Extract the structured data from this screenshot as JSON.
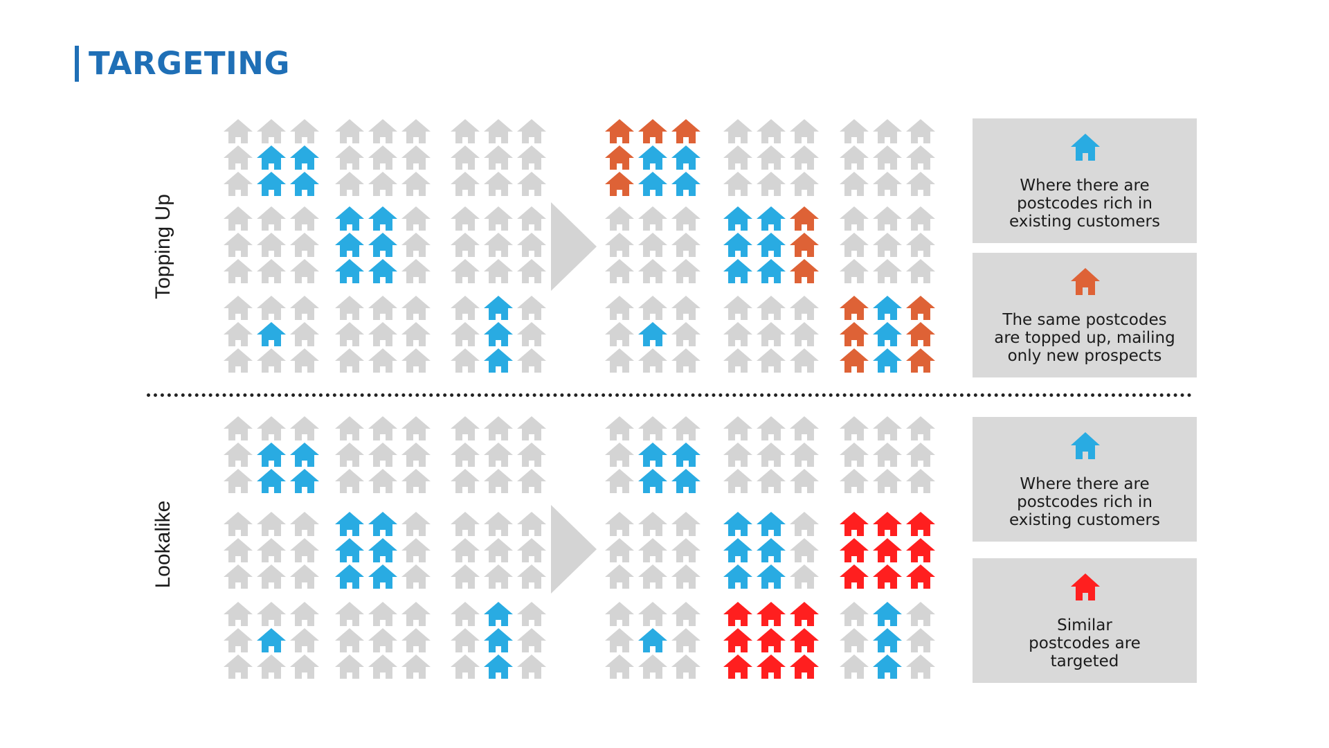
{
  "title": "TARGETING",
  "colors": {
    "title": "#1f6fb6",
    "empty_house": "#d4d4d4",
    "existing_customer": "#29abe2",
    "topped_up": "#de6236",
    "targeted": "#ff1f1f",
    "info_box_bg": "#d9d9d9"
  },
  "sections": [
    {
      "label": "Topping Up",
      "before": [
        [
          "ggg",
          "gbb",
          "gbb",
          "ggg",
          "ggg",
          "ggg",
          "ggg",
          "ggg",
          "ggg"
        ],
        [
          "ggg",
          "ggg",
          "ggg",
          "bbg",
          "bbg",
          "bbg",
          "ggg",
          "ggg",
          "ggg"
        ],
        [
          "ggg",
          "gbg",
          "ggg",
          "ggg",
          "ggg",
          "ggg",
          "gbg",
          "gbg",
          "gbg"
        ]
      ],
      "after": [
        [
          "ooo",
          "obb",
          "obb",
          "ggg",
          "ggg",
          "ggg",
          "ggg",
          "ggg",
          "ggg"
        ],
        [
          "ggg",
          "ggg",
          "ggg",
          "bbo",
          "bbo",
          "bbo",
          "ggg",
          "ggg",
          "ggg"
        ],
        [
          "ggg",
          "gbg",
          "ggg",
          "ggg",
          "ggg",
          "ggg",
          "obo",
          "obo",
          "obo"
        ]
      ],
      "legend": [
        {
          "icon": "blue-house-icon",
          "color": "existing_customer",
          "text": "Where there are\npostcodes rich in\nexisting customers"
        },
        {
          "icon": "orange-house-icon",
          "color": "topped_up",
          "text": "The same postcodes\nare topped up, mailing\nonly new prospects"
        }
      ]
    },
    {
      "label": "Lookalike",
      "before": [
        [
          "ggg",
          "gbb",
          "gbb",
          "ggg",
          "ggg",
          "ggg",
          "ggg",
          "ggg",
          "ggg"
        ],
        [
          "ggg",
          "ggg",
          "ggg",
          "bbg",
          "bbg",
          "bbg",
          "ggg",
          "ggg",
          "ggg"
        ],
        [
          "ggg",
          "gbg",
          "ggg",
          "ggg",
          "ggg",
          "ggg",
          "gbg",
          "gbg",
          "gbg"
        ]
      ],
      "after": [
        [
          "ggg",
          "gbb",
          "gbb",
          "ggg",
          "ggg",
          "ggg",
          "ggg",
          "ggg",
          "ggg"
        ],
        [
          "ggg",
          "ggg",
          "ggg",
          "bbg",
          "bbg",
          "bbg",
          "rrr",
          "rrr",
          "rrr"
        ],
        [
          "ggg",
          "gbg",
          "ggg",
          "rrr",
          "rrr",
          "rrr",
          "gbg",
          "gbg",
          "gbg"
        ]
      ],
      "legend": [
        {
          "icon": "blue-house-icon",
          "color": "existing_customer",
          "text": "Where there are\npostcodes rich in\nexisting customers"
        },
        {
          "icon": "red-house-icon",
          "color": "targeted",
          "text": "Similar\npostcodes are\ntargeted"
        }
      ]
    }
  ]
}
